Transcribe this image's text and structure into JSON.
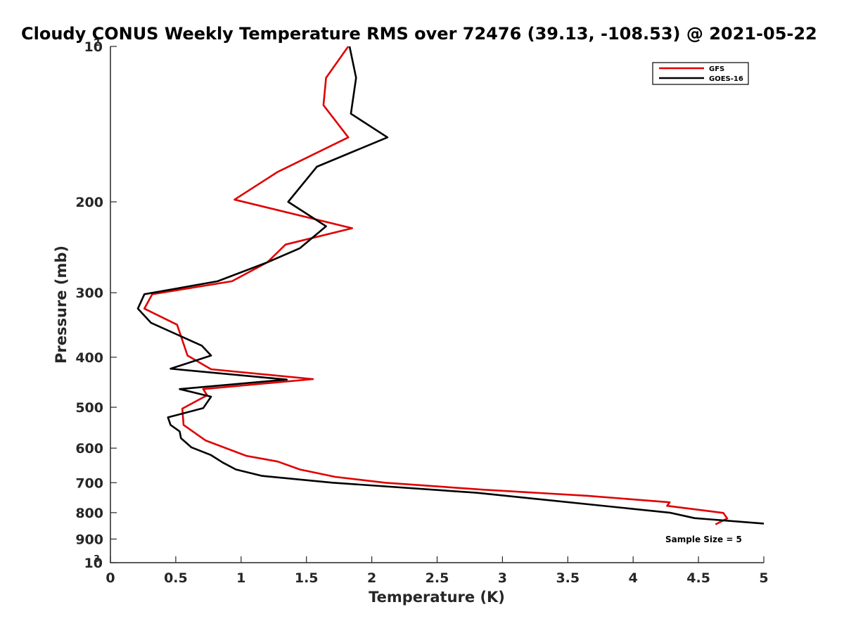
{
  "chart_data": {
    "type": "line",
    "title": "Cloudy CONUS Weekly Temperature RMS over 72476 (39.13, -108.53) @ 2021-05-22",
    "xlabel": "Temperature (K)",
    "ylabel": "Pressure (mb)",
    "xlim": [
      0,
      5
    ],
    "ylim": [
      100,
      1000
    ],
    "y_scale": "log",
    "y_reversed": true,
    "x_ticks": [
      "0",
      "0.5",
      "1",
      "1.5",
      "2",
      "2.5",
      "3",
      "3.5",
      "4",
      "4.5",
      "5"
    ],
    "y_ticks": [
      {
        "value": 100,
        "base": "10",
        "exp": "2"
      },
      {
        "value": 200,
        "label": "200"
      },
      {
        "value": 300,
        "label": "300"
      },
      {
        "value": 400,
        "label": "400"
      },
      {
        "value": 500,
        "label": "500"
      },
      {
        "value": 600,
        "label": "600"
      },
      {
        "value": 700,
        "label": "700"
      },
      {
        "value": 800,
        "label": "800"
      },
      {
        "value": 900,
        "label": "900"
      },
      {
        "value": 1000,
        "base": "10",
        "exp": "3"
      }
    ],
    "legend_position": "top-right",
    "grid": false,
    "annotation": "Sample Size = 5",
    "series": [
      {
        "name": "GFS",
        "color": "#e00000",
        "points": [
          [
            1.82,
            100
          ],
          [
            1.65,
            115
          ],
          [
            1.63,
            130
          ],
          [
            1.82,
            150
          ],
          [
            1.28,
            175
          ],
          [
            0.95,
            198
          ],
          [
            1.85,
            225
          ],
          [
            1.34,
            242
          ],
          [
            1.2,
            262
          ],
          [
            0.93,
            285
          ],
          [
            0.32,
            302
          ],
          [
            0.26,
            322
          ],
          [
            0.51,
            346
          ],
          [
            0.59,
            397
          ],
          [
            0.77,
            422
          ],
          [
            1.55,
            441
          ],
          [
            0.71,
            461
          ],
          [
            0.74,
            474
          ],
          [
            0.55,
            503
          ],
          [
            0.56,
            541
          ],
          [
            0.73,
            580
          ],
          [
            1.04,
            621
          ],
          [
            1.28,
            637
          ],
          [
            1.45,
            660
          ],
          [
            1.72,
            682
          ],
          [
            2.1,
            700
          ],
          [
            2.85,
            722
          ],
          [
            3.65,
            742
          ],
          [
            4.28,
            764
          ],
          [
            4.26,
            776
          ],
          [
            4.69,
            801
          ],
          [
            4.72,
            821
          ],
          [
            4.63,
            843
          ]
        ]
      },
      {
        "name": "GOES-16",
        "color": "#000000",
        "points": [
          [
            1.83,
            100
          ],
          [
            1.88,
            115
          ],
          [
            1.84,
            135
          ],
          [
            2.12,
            150
          ],
          [
            1.58,
            171
          ],
          [
            1.36,
            200
          ],
          [
            1.65,
            223
          ],
          [
            1.45,
            246
          ],
          [
            1.2,
            262
          ],
          [
            0.82,
            285
          ],
          [
            0.26,
            302
          ],
          [
            0.21,
            322
          ],
          [
            0.31,
            343
          ],
          [
            0.7,
            380
          ],
          [
            0.77,
            397
          ],
          [
            0.46,
            421
          ],
          [
            1.35,
            442
          ],
          [
            0.53,
            461
          ],
          [
            0.77,
            477
          ],
          [
            0.71,
            502
          ],
          [
            0.44,
            523
          ],
          [
            0.46,
            541
          ],
          [
            0.53,
            557
          ],
          [
            0.54,
            574
          ],
          [
            0.62,
            598
          ],
          [
            0.77,
            619
          ],
          [
            0.86,
            640
          ],
          [
            0.96,
            660
          ],
          [
            1.16,
            679
          ],
          [
            1.7,
            700
          ],
          [
            2.8,
            732
          ],
          [
            4.28,
            800
          ],
          [
            4.47,
            820
          ],
          [
            5.0,
            840
          ]
        ]
      }
    ]
  }
}
